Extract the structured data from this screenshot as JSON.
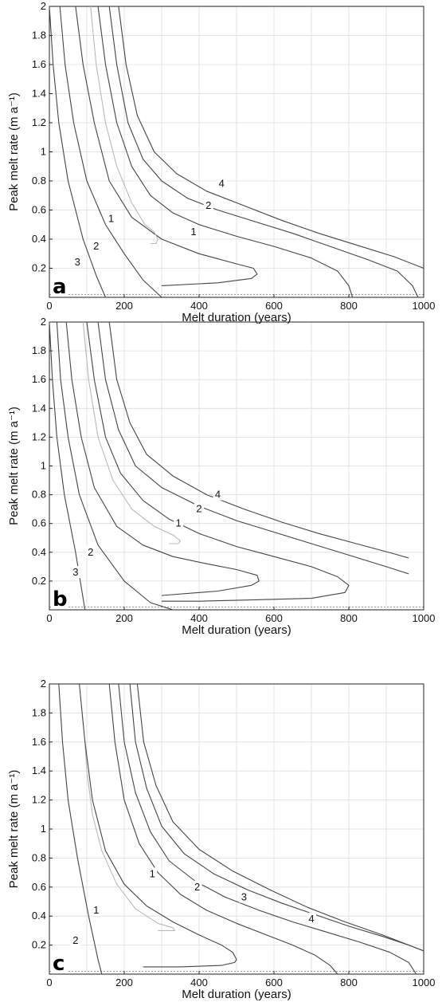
{
  "chart_data": [
    {
      "type": "line",
      "panel": "a",
      "xlabel": "Melt duration (years)",
      "ylabel": "Peak melt rate (m a⁻¹)",
      "xlim": [
        0,
        1000
      ],
      "ylim": [
        0,
        2
      ],
      "xticks": [
        "0",
        "200",
        "400",
        "600",
        "800",
        "1000"
      ],
      "yticks": [
        "0.2",
        "0.4",
        "0.6",
        "0.8",
        "1",
        "1.2",
        "1.4",
        "1.6",
        "1.8",
        "2"
      ],
      "grid": true,
      "series": [
        {
          "name": "3",
          "color": "#444444",
          "x": [
            0,
            10,
            25,
            50,
            90,
            125,
            150
          ],
          "y": [
            2,
            1.6,
            1.2,
            0.8,
            0.4,
            0.15,
            0
          ],
          "label_at": [
            75,
            0.24
          ]
        },
        {
          "name": "2",
          "color": "#444444",
          "x": [
            28,
            42,
            65,
            100,
            150,
            200,
            250,
            300
          ],
          "y": [
            2,
            1.6,
            1.2,
            0.8,
            0.5,
            0.3,
            0.12,
            0
          ],
          "label_at": [
            125,
            0.35
          ]
        },
        {
          "name": "1",
          "color": "#444444",
          "x": [
            70,
            90,
            120,
            160,
            220,
            300,
            400,
            500,
            545,
            555,
            540,
            450,
            300
          ],
          "y": [
            2,
            1.6,
            1.2,
            0.8,
            0.55,
            0.4,
            0.3,
            0.23,
            0.2,
            0.16,
            0.13,
            0.1,
            0.08
          ],
          "label_at": [
            165,
            0.54
          ]
        },
        {
          "name": "",
          "color": "#b8b8b8",
          "x": [
            110,
            125,
            150,
            180,
            220,
            255,
            280,
            290,
            285,
            270
          ],
          "y": [
            2,
            1.6,
            1.2,
            0.9,
            0.65,
            0.5,
            0.45,
            0.4,
            0.37,
            0.37
          ]
        },
        {
          "name": "1",
          "color": "#444444",
          "x": [
            130,
            150,
            180,
            220,
            270,
            330,
            400,
            500,
            600,
            700,
            770,
            800,
            810
          ],
          "y": [
            2,
            1.6,
            1.2,
            0.9,
            0.7,
            0.58,
            0.5,
            0.42,
            0.35,
            0.27,
            0.18,
            0.08,
            0
          ],
          "label_at": [
            385,
            0.45
          ]
        },
        {
          "name": "2",
          "color": "#444444",
          "x": [
            160,
            180,
            210,
            250,
            300,
            370,
            450,
            550,
            650,
            750,
            850,
            930,
            970,
            985
          ],
          "y": [
            2,
            1.6,
            1.2,
            0.95,
            0.8,
            0.68,
            0.6,
            0.52,
            0.44,
            0.35,
            0.26,
            0.18,
            0.08,
            0
          ],
          "label_at": [
            425,
            0.63
          ]
        },
        {
          "name": "4",
          "color": "#444444",
          "x": [
            185,
            205,
            235,
            280,
            340,
            420,
            520,
            620,
            720,
            820,
            920,
            1000
          ],
          "y": [
            2,
            1.6,
            1.25,
            1.0,
            0.85,
            0.73,
            0.63,
            0.53,
            0.44,
            0.36,
            0.28,
            0.2
          ],
          "label_at": [
            460,
            0.78
          ]
        }
      ]
    },
    {
      "type": "line",
      "panel": "b",
      "xlabel": "Melt duration (years)",
      "ylabel": "Peak melt rate (m a⁻¹)",
      "xlim": [
        0,
        1000
      ],
      "ylim": [
        0,
        2
      ],
      "xticks": [
        "0",
        "200",
        "400",
        "600",
        "800",
        "1000"
      ],
      "yticks": [
        "0.2",
        "0.4",
        "0.6",
        "0.8",
        "1",
        "1.2",
        "1.4",
        "1.6",
        "1.8",
        "2"
      ],
      "grid": true,
      "series": [
        {
          "name": "",
          "color": "#444444",
          "x": [
            0,
            8,
            20,
            40,
            70,
            95
          ],
          "y": [
            2,
            1.6,
            1.2,
            0.8,
            0.4,
            0
          ]
        },
        {
          "name": "3",
          "color": "#444444",
          "x": [
            20,
            30,
            50,
            80,
            130,
            200,
            270,
            330
          ],
          "y": [
            2,
            1.6,
            1.2,
            0.8,
            0.45,
            0.2,
            0.05,
            0
          ],
          "label_at": [
            70,
            0.26
          ]
        },
        {
          "name": "2",
          "color": "#444444",
          "x": [
            45,
            60,
            85,
            120,
            180,
            250,
            330,
            420,
            500,
            555,
            560,
            540,
            450,
            300
          ],
          "y": [
            2,
            1.6,
            1.2,
            0.85,
            0.58,
            0.45,
            0.37,
            0.32,
            0.28,
            0.24,
            0.2,
            0.17,
            0.13,
            0.1
          ],
          "label_at": [
            110,
            0.4
          ]
        },
        {
          "name": "",
          "color": "#b8b8b8",
          "x": [
            90,
            105,
            130,
            170,
            220,
            280,
            330,
            350,
            345,
            320
          ],
          "y": [
            2,
            1.6,
            1.2,
            0.9,
            0.7,
            0.58,
            0.52,
            0.48,
            0.46,
            0.46
          ]
        },
        {
          "name": "1",
          "color": "#444444",
          "x": [
            100,
            120,
            150,
            190,
            250,
            320,
            400,
            500,
            600,
            700,
            770,
            800,
            790,
            700,
            550,
            400,
            300
          ],
          "y": [
            2,
            1.6,
            1.2,
            0.95,
            0.76,
            0.63,
            0.53,
            0.44,
            0.37,
            0.3,
            0.23,
            0.17,
            0.12,
            0.08,
            0.07,
            0.06,
            0.06
          ],
          "label_at": [
            345,
            0.6
          ]
        },
        {
          "name": "2",
          "color": "#444444",
          "x": [
            130,
            150,
            185,
            230,
            300,
            400,
            500,
            600,
            700,
            800,
            900,
            960
          ],
          "y": [
            2,
            1.6,
            1.25,
            1.0,
            0.85,
            0.72,
            0.62,
            0.54,
            0.46,
            0.38,
            0.3,
            0.25
          ],
          "label_at": [
            400,
            0.7
          ]
        },
        {
          "name": "4",
          "color": "#444444",
          "x": [
            160,
            180,
            215,
            260,
            330,
            420,
            520,
            620,
            720,
            820,
            920,
            960
          ],
          "y": [
            2,
            1.6,
            1.3,
            1.08,
            0.93,
            0.8,
            0.7,
            0.61,
            0.53,
            0.46,
            0.39,
            0.36
          ],
          "label_at": [
            450,
            0.8
          ]
        }
      ]
    },
    {
      "type": "line",
      "panel": "c",
      "xlabel": "Melt duration (years)",
      "ylabel": "Peak melt rate (m a⁻¹)",
      "xlim": [
        0,
        1000
      ],
      "ylim": [
        0,
        2
      ],
      "xticks": [
        "0",
        "200",
        "400",
        "600",
        "800",
        "1000"
      ],
      "yticks": [
        "0.2",
        "0.4",
        "0.6",
        "0.8",
        "1",
        "1.2",
        "1.4",
        "1.6",
        "1.8",
        "2"
      ],
      "grid": true,
      "series": [
        {
          "name": "2",
          "color": "#444444",
          "x": [
            25,
            35,
            50,
            75,
            105,
            130,
            140
          ],
          "y": [
            2,
            1.6,
            1.2,
            0.8,
            0.4,
            0.1,
            0
          ],
          "label_at": [
            70,
            0.23
          ]
        },
        {
          "name": "",
          "color": "#b8b8b8",
          "x": [
            95,
            100,
            115,
            140,
            180,
            230,
            290,
            330,
            335,
            320,
            290
          ],
          "y": [
            1.6,
            1.4,
            1.1,
            0.85,
            0.62,
            0.45,
            0.35,
            0.32,
            0.3,
            0.3,
            0.3
          ]
        },
        {
          "name": "1",
          "color": "#444444",
          "x": [
            80,
            95,
            115,
            150,
            200,
            260,
            330,
            400,
            460,
            490,
            500,
            495,
            460,
            350,
            250
          ],
          "y": [
            2,
            1.6,
            1.2,
            0.85,
            0.62,
            0.47,
            0.36,
            0.27,
            0.2,
            0.15,
            0.1,
            0.08,
            0.06,
            0.05,
            0.05
          ],
          "label_at": [
            125,
            0.44
          ]
        },
        {
          "name": "1",
          "color": "#444444",
          "x": [
            160,
            175,
            200,
            240,
            290,
            350,
            420,
            500,
            580,
            650,
            710,
            750,
            770
          ],
          "y": [
            2,
            1.6,
            1.2,
            0.9,
            0.7,
            0.55,
            0.44,
            0.35,
            0.27,
            0.2,
            0.13,
            0.06,
            0
          ],
          "label_at": [
            275,
            0.69
          ]
        },
        {
          "name": "2",
          "color": "#444444",
          "x": [
            185,
            200,
            230,
            270,
            320,
            390,
            470,
            560,
            650,
            740,
            830,
            910,
            960,
            980
          ],
          "y": [
            2,
            1.6,
            1.25,
            0.98,
            0.78,
            0.64,
            0.53,
            0.44,
            0.36,
            0.29,
            0.22,
            0.15,
            0.08,
            0
          ],
          "label_at": [
            395,
            0.6
          ]
        },
        {
          "name": "3",
          "color": "#444444",
          "x": [
            215,
            230,
            260,
            300,
            360,
            440,
            530,
            620,
            710,
            800,
            890,
            960,
            1000
          ],
          "y": [
            2,
            1.6,
            1.28,
            1.02,
            0.83,
            0.69,
            0.58,
            0.49,
            0.41,
            0.33,
            0.26,
            0.2,
            0.16
          ],
          "label_at": [
            520,
            0.53
          ]
        },
        {
          "name": "4",
          "color": "#444444",
          "x": [
            235,
            252,
            285,
            330,
            400,
            490,
            590,
            690,
            790,
            890,
            960,
            1000
          ],
          "y": [
            2,
            1.6,
            1.3,
            1.05,
            0.86,
            0.71,
            0.58,
            0.46,
            0.36,
            0.27,
            0.2,
            0.16
          ],
          "label_at": [
            700,
            0.38
          ]
        }
      ]
    }
  ]
}
